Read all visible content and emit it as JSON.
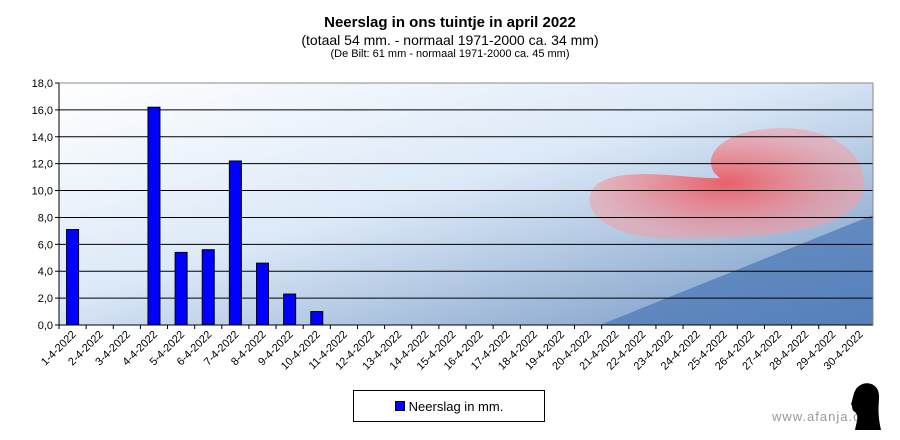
{
  "chart_data": {
    "type": "bar",
    "title": "Neerslag in ons tuintje in april 2022",
    "subtitle": "(totaal 54 mm. - normaal 1971-2000 ca. 34 mm)",
    "subtitle2": "(De Bilt: 61 mm - normaal 1971-2000 ca. 45 mm)",
    "categories": [
      "1-4-2022",
      "2-4-2022",
      "3-4-2022",
      "4-4-2022",
      "5-4-2022",
      "6-4-2022",
      "7-4-2022",
      "8-4-2022",
      "9-4-2022",
      "10-4-2022",
      "11-4-2022",
      "12-4-2022",
      "13-4-2022",
      "14-4-2022",
      "15-4-2022",
      "16-4-2022",
      "17-4-2022",
      "18-4-2022",
      "19-4-2022",
      "20-4-2022",
      "21-4-2022",
      "22-4-2022",
      "23-4-2022",
      "24-4-2022",
      "25-4-2022",
      "26-4-2022",
      "27-4-2022",
      "28-4-2022",
      "29-4-2022",
      "30-4-2022"
    ],
    "series": [
      {
        "name": "Neerslag in mm.",
        "values": [
          7.1,
          0,
          0,
          16.2,
          5.4,
          5.6,
          12.2,
          4.6,
          2.3,
          1.0,
          0,
          0,
          0,
          0,
          0,
          0,
          0,
          0,
          0,
          0,
          0,
          0,
          0,
          0,
          0,
          0,
          0,
          0,
          0,
          0
        ],
        "color": "#0000ff"
      }
    ],
    "ylim": [
      0,
      18
    ],
    "yticks": [
      "0,0",
      "2,0",
      "4,0",
      "6,0",
      "8,0",
      "10,0",
      "12,0",
      "14,0",
      "16,0",
      "18,0"
    ],
    "grid": true,
    "legend": "bottom"
  },
  "watermark": "www.afanja.com"
}
